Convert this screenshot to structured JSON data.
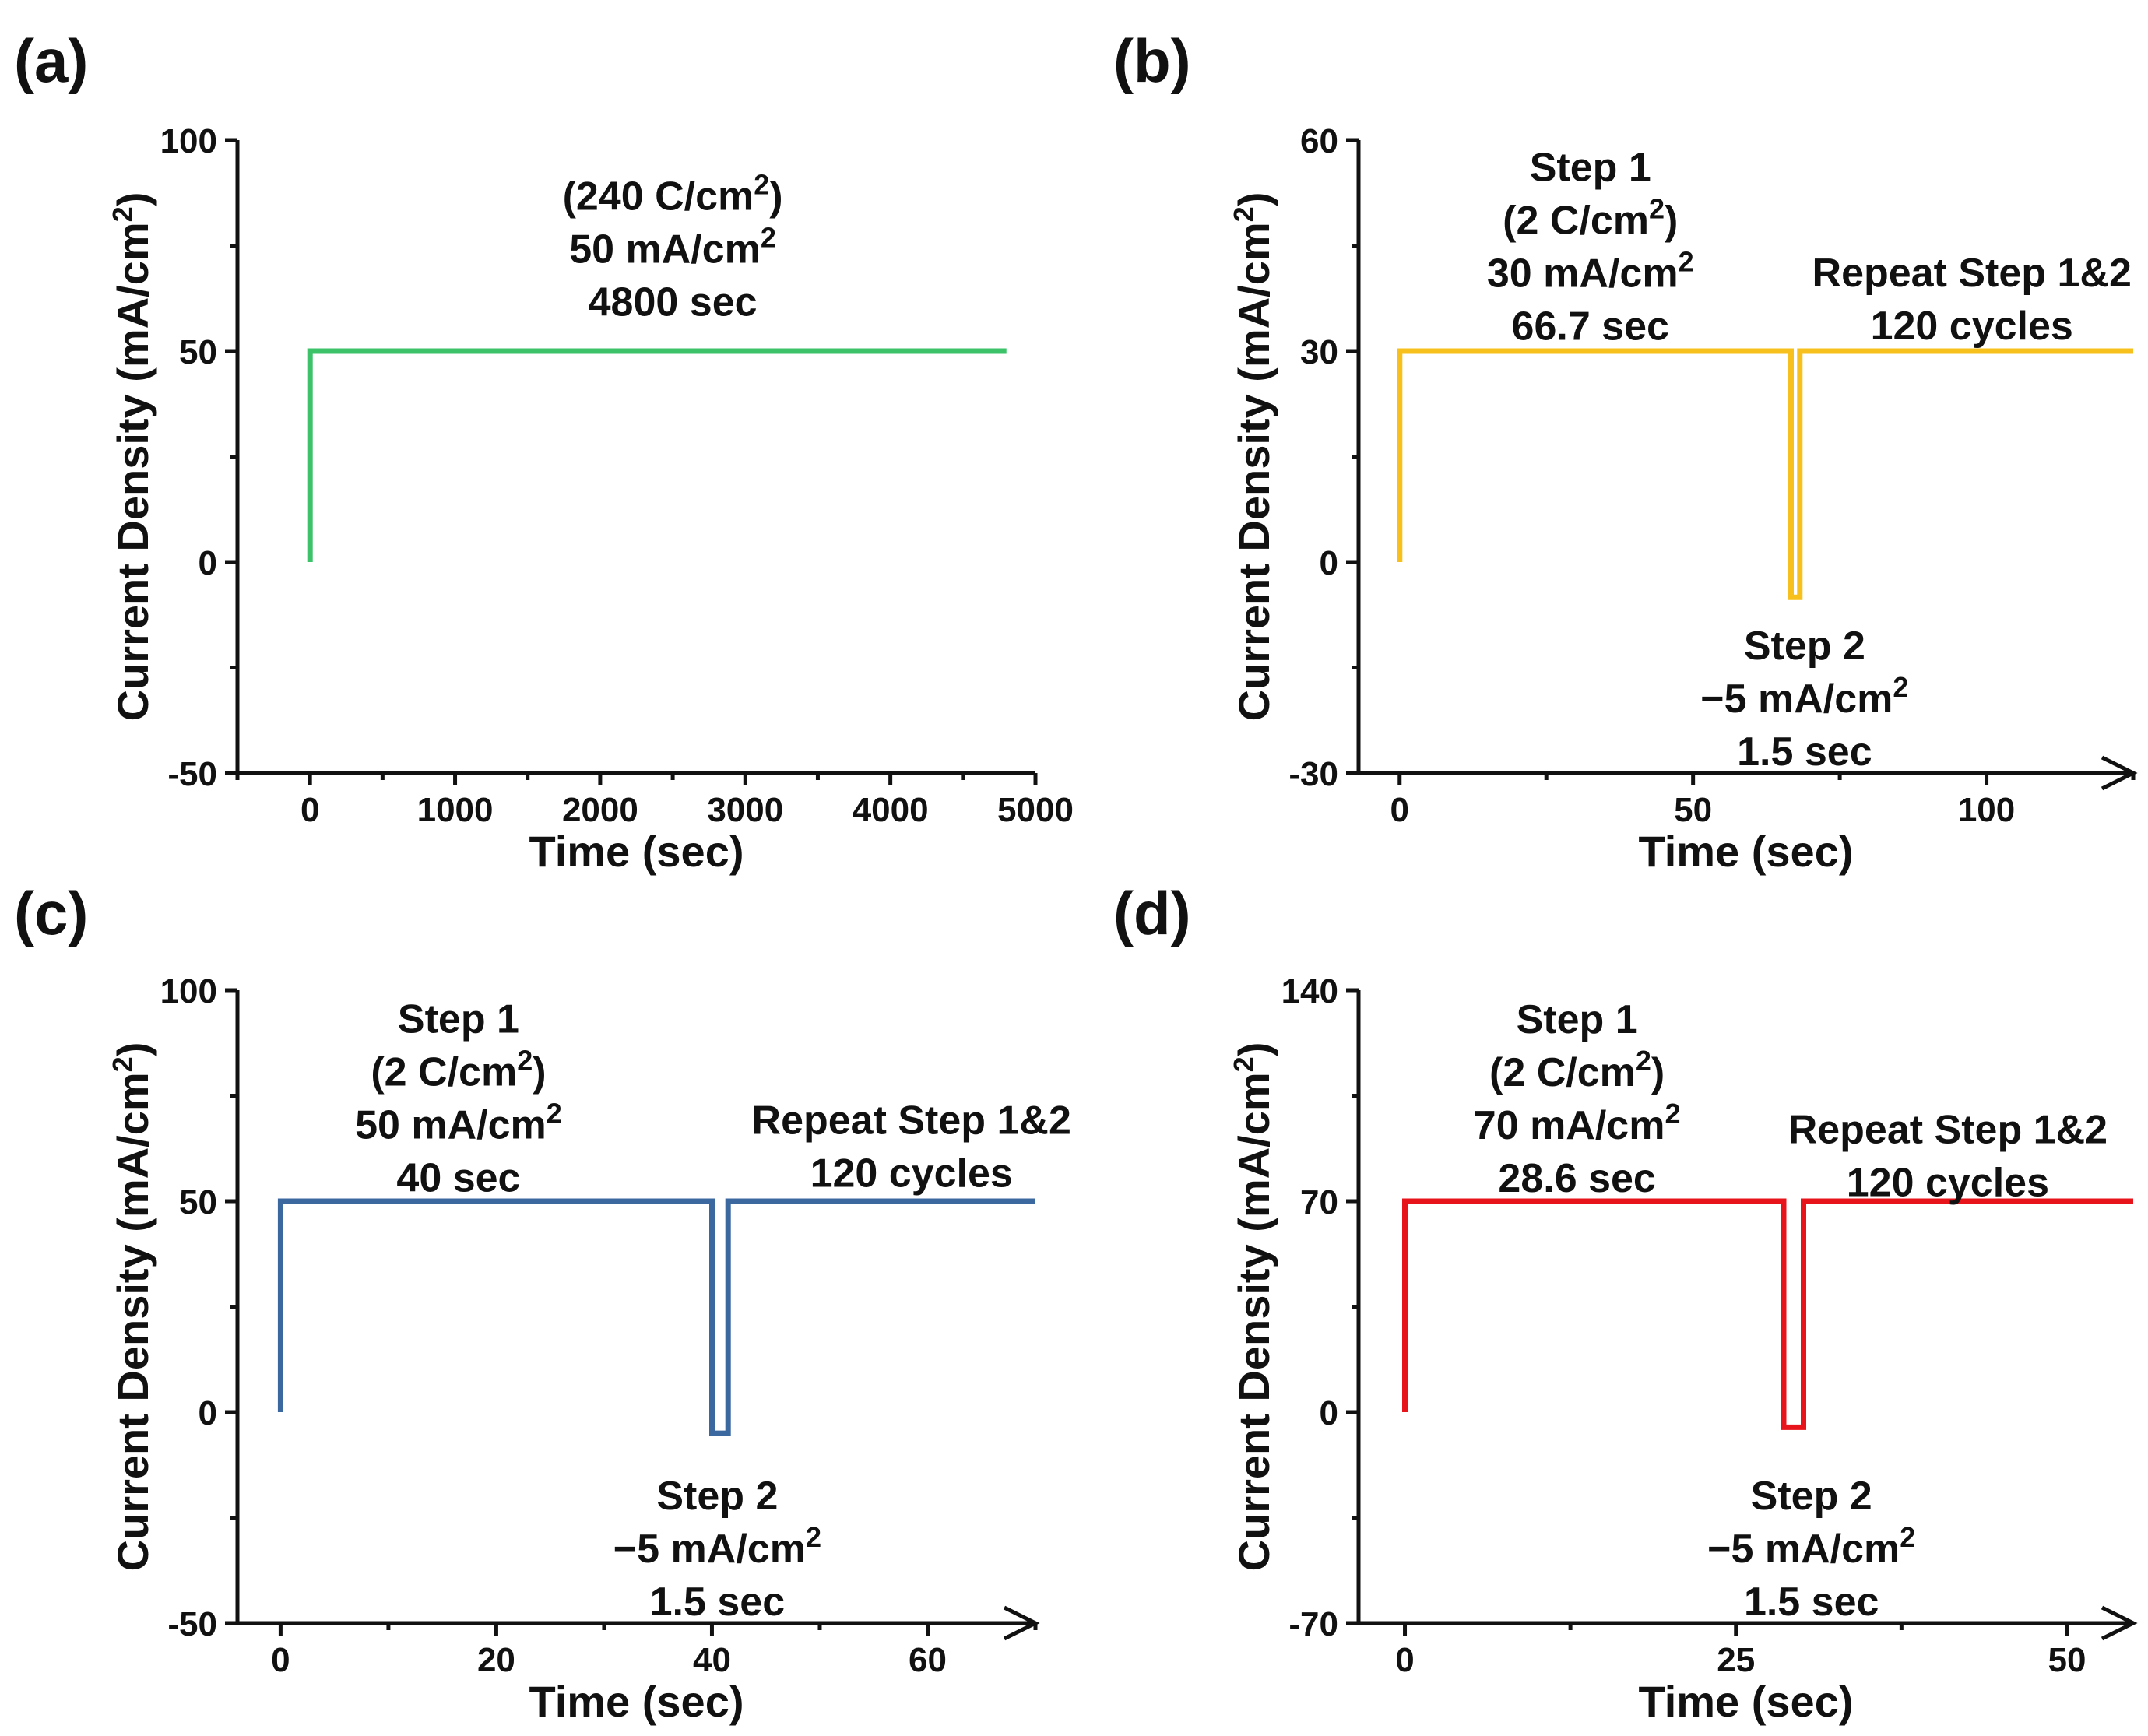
{
  "chart_data": [
    {
      "panel_label": "(a)",
      "type": "line",
      "xlabel": "Time (sec)",
      "ylabel": "Current Density (mA/cm2)",
      "xlim": [
        -500,
        5000
      ],
      "ylim": [
        -50,
        100
      ],
      "x_ticks": [
        0,
        1000,
        2000,
        3000,
        4000,
        5000
      ],
      "y_ticks": [
        -50,
        0,
        50,
        100
      ],
      "x_arrow": false,
      "color": "#3cc36a",
      "series": [
        {
          "x": [
            0,
            0,
            4800
          ],
          "y": [
            0,
            50,
            50
          ]
        }
      ],
      "annotations": [
        {
          "lines": [
            [
              "(240 C/cm",
              "2",
              ")"
            ],
            [
              "50 mA/cm",
              "2",
              ""
            ],
            [
              "4800 sec"
            ]
          ],
          "at": [
            2500,
            89
          ],
          "anchor": "middle"
        }
      ]
    },
    {
      "panel_label": "(b)",
      "type": "line",
      "xlabel": "Time (sec)",
      "ylabel": "Current Density (mA/cm2)",
      "xlim": [
        -7,
        125
      ],
      "ylim": [
        -30,
        60
      ],
      "x_ticks": [
        0,
        50,
        100
      ],
      "y_ticks": [
        -30,
        0,
        30,
        60
      ],
      "x_arrow": true,
      "color": "#f7c01c",
      "series": [
        {
          "x": [
            0,
            0,
            66.7,
            66.7,
            68.2,
            68.2,
            125
          ],
          "y": [
            0,
            30,
            30,
            -5,
            -5,
            30,
            30
          ]
        }
      ],
      "annotations": [
        {
          "lines": [
            [
              "Step 1"
            ],
            [
              "(2 C/cm",
              "2",
              ")"
            ],
            [
              "30 mA/cm",
              "2",
              ""
            ],
            [
              "66.7 sec"
            ]
          ],
          "at": [
            32.5,
            57.5
          ],
          "anchor": "middle"
        },
        {
          "lines": [
            [
              "Repeat Step 1&2"
            ],
            [
              "120 cycles"
            ]
          ],
          "at": [
            97.5,
            42.5
          ],
          "anchor": "middle"
        },
        {
          "lines": [
            [
              "Step 2"
            ],
            [
              "−5 mA/cm",
              "2",
              ""
            ],
            [
              "1.5 sec"
            ]
          ],
          "at": [
            69,
            -10.5
          ],
          "anchor": "middle"
        }
      ]
    },
    {
      "panel_label": "(c)",
      "type": "line",
      "xlabel": "Time (sec)",
      "ylabel": "Current Density (mA/cm2)",
      "xlim": [
        -4,
        70
      ],
      "ylim": [
        -50,
        100
      ],
      "x_ticks": [
        0,
        20,
        40,
        60
      ],
      "y_ticks": [
        -50,
        0,
        50,
        100
      ],
      "x_arrow": true,
      "color": "#3c68a0",
      "series": [
        {
          "x": [
            0,
            0,
            40,
            40,
            41.5,
            41.5,
            70
          ],
          "y": [
            0,
            50,
            50,
            -5,
            -5,
            50,
            50
          ]
        }
      ],
      "annotations": [
        {
          "lines": [
            [
              "Step 1"
            ],
            [
              "(2 C/cm",
              "2",
              ")"
            ],
            [
              "50 mA/cm",
              "2",
              ""
            ],
            [
              "40 sec"
            ]
          ],
          "at": [
            16.5,
            95.5
          ],
          "anchor": "middle"
        },
        {
          "lines": [
            [
              "Repeat Step 1&2"
            ],
            [
              "120 cycles"
            ]
          ],
          "at": [
            58.5,
            71.5
          ],
          "anchor": "middle"
        },
        {
          "lines": [
            [
              "Step 2"
            ],
            [
              "−5 mA/cm",
              "2",
              ""
            ],
            [
              "1.5 sec"
            ]
          ],
          "at": [
            40.5,
            -17.5
          ],
          "anchor": "middle"
        }
      ]
    },
    {
      "panel_label": "(d)",
      "type": "line",
      "xlabel": "Time (sec)",
      "ylabel": "Current Density (mA/cm2)",
      "xlim": [
        -3.5,
        55
      ],
      "ylim": [
        -70,
        140
      ],
      "x_ticks": [
        0,
        25,
        50
      ],
      "y_ticks": [
        -70,
        0,
        70,
        140
      ],
      "x_arrow": true,
      "color": "#e8141c",
      "series": [
        {
          "x": [
            0,
            0,
            28.6,
            28.6,
            30.1,
            30.1,
            55
          ],
          "y": [
            0,
            70,
            70,
            -5,
            -5,
            70,
            70
          ]
        }
      ],
      "annotations": [
        {
          "lines": [
            [
              "Step 1"
            ],
            [
              "(2 C/cm",
              "2",
              ")"
            ],
            [
              "70 mA/cm",
              "2",
              ""
            ],
            [
              "28.6 sec"
            ]
          ],
          "at": [
            13,
            133.5
          ],
          "anchor": "middle"
        },
        {
          "lines": [
            [
              "Repeat Step 1&2"
            ],
            [
              "120 cycles"
            ]
          ],
          "at": [
            41,
            97
          ],
          "anchor": "middle"
        },
        {
          "lines": [
            [
              "Step 2"
            ],
            [
              "−5 mA/cm",
              "2",
              ""
            ],
            [
              "1.5 sec"
            ]
          ],
          "at": [
            30.7,
            -24.5
          ],
          "anchor": "middle"
        }
      ]
    }
  ]
}
